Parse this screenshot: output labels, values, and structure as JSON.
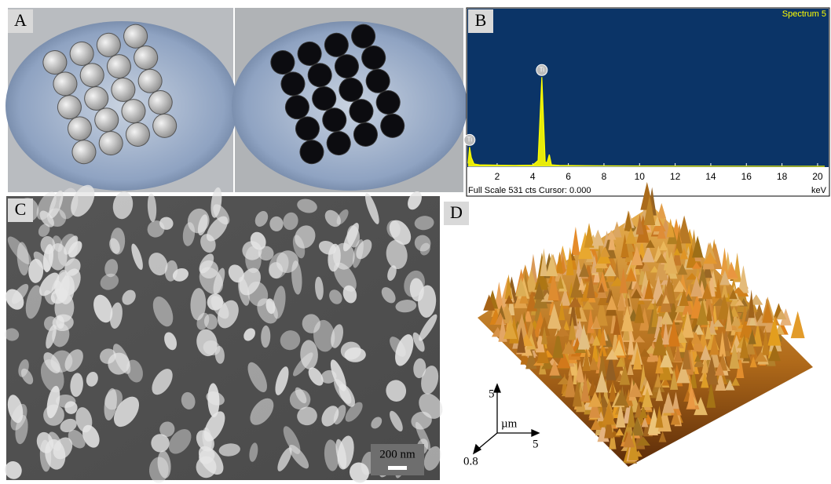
{
  "panels": {
    "a": "A",
    "b": "B",
    "c": "C",
    "d": "D"
  },
  "chart_data": {
    "type": "line",
    "title": "Spectrum 5",
    "xlabel": "keV",
    "footer": "Full Scale 531 cts Cursor: 0.000",
    "x": [
      0.37,
      0.45,
      0.55,
      0.7,
      1,
      2,
      3,
      4,
      4.3,
      4.51,
      4.7,
      4.8,
      4.93,
      5.05,
      5.5,
      7,
      10,
      20.4
    ],
    "series": [
      {
        "name": "Spectrum 5",
        "color": "#ffff00",
        "values": [
          10,
          66,
          30,
          8,
          5,
          4,
          3,
          4,
          20,
          305,
          15,
          12,
          40,
          5,
          3,
          2,
          1,
          0
        ]
      }
    ],
    "xlim": [
      0.37,
      20.4
    ],
    "ylim": [
      0,
      531
    ],
    "xticks": [
      2,
      4,
      6,
      8,
      10,
      12,
      14,
      16,
      18,
      20
    ],
    "annotations": [
      {
        "text": "Ti",
        "x": 0.45
      },
      {
        "text": "Ti",
        "x": 4.51
      }
    ]
  },
  "scale_bar": "200 nm",
  "afm_axes": {
    "z": "5",
    "unit": "µm",
    "x": "5",
    "y": "0.8"
  }
}
